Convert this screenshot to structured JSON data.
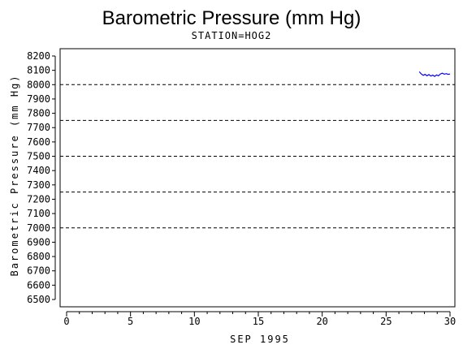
{
  "chart_data": {
    "type": "line",
    "title": "Barometric Pressure (mm Hg)",
    "subtitle": "STATION=HOG2",
    "xlabel": "SEP 1995",
    "ylabel": "Barometric Pressure (mm Hg)",
    "xlim": [
      0,
      30
    ],
    "ylim": [
      6500,
      8200
    ],
    "x_ticks": [
      "0",
      "5",
      "10",
      "15",
      "20",
      "25",
      "30"
    ],
    "y_ticks": [
      "6500",
      "6600",
      "6700",
      "6800",
      "6900",
      "7000",
      "7100",
      "7200",
      "7300",
      "7400",
      "7500",
      "7600",
      "7700",
      "7800",
      "7900",
      "8000",
      "8100",
      "8200"
    ],
    "reference_lines": [
      8000,
      7750,
      7500,
      7250,
      7000
    ],
    "series": [
      {
        "color": "#0000ff",
        "x": [
          27.6,
          27.75,
          27.9,
          28.05,
          28.2,
          28.35,
          28.5,
          28.65,
          28.8,
          28.95,
          29.1,
          29.25,
          29.4,
          29.55,
          29.7,
          29.85,
          30.0
        ],
        "y": [
          8090,
          8075,
          8065,
          8072,
          8062,
          8070,
          8060,
          8066,
          8058,
          8068,
          8062,
          8075,
          8080,
          8073,
          8077,
          8072,
          8074
        ]
      }
    ]
  }
}
